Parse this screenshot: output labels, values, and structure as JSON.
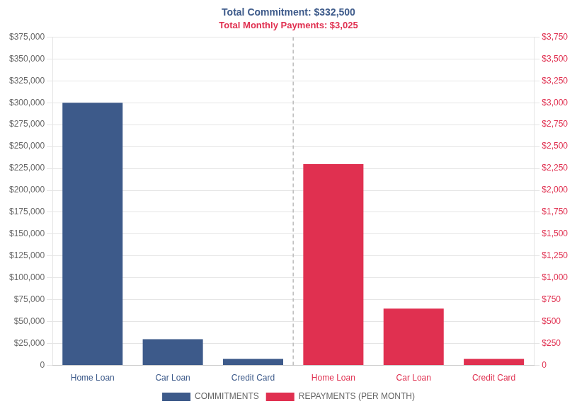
{
  "chart_data": {
    "type": "bar",
    "title": "Total Commitment: $332,500",
    "subtitle": "Total Monthly Payments: $3,025",
    "categories": [
      "Home Loan",
      "Car Loan",
      "Credit Card",
      "Home Loan",
      "Car Loan",
      "Credit Card"
    ],
    "series": [
      {
        "name": "COMMITMENTS",
        "color": "#3d5a8a",
        "values": [
          300000,
          30000,
          7500,
          null,
          null,
          null
        ]
      },
      {
        "name": "REPAYMENTS (PER MONTH)",
        "color": "#e03050",
        "axis": "y2",
        "values": [
          null,
          null,
          null,
          2300,
          650,
          75
        ]
      }
    ],
    "ylim": [
      0,
      375000
    ],
    "yticks": [
      0,
      {
        "value": 25000,
        "label": "$25,000"
      },
      {
        "value": 50000,
        "label": "$50,000"
      },
      {
        "value": 75000,
        "label": "$75,000"
      },
      {
        "value": 100000,
        "label": "$100,000"
      },
      {
        "value": 125000,
        "label": "$125,000"
      },
      {
        "value": 150000,
        "label": "$150,000"
      },
      {
        "value": 175000,
        "label": "$175,000"
      },
      {
        "value": 200000,
        "label": "$200,000"
      },
      {
        "value": 225000,
        "label": "$225,000"
      },
      {
        "value": 250000,
        "label": "$250,000"
      },
      {
        "value": 275000,
        "label": "$275,000"
      },
      {
        "value": 300000,
        "label": "$300,000"
      },
      {
        "value": 325000,
        "label": "$325,000"
      },
      {
        "value": 350000,
        "label": "$350,000"
      },
      {
        "value": 375000,
        "label": "$375,000"
      }
    ],
    "y2lim": [
      0,
      3750
    ],
    "y2ticks": [
      0,
      {
        "value": 250,
        "label": "$250"
      },
      {
        "value": 500,
        "label": "$500"
      },
      {
        "value": 750,
        "label": "$750"
      },
      {
        "value": 1000,
        "label": "$1,000"
      },
      {
        "value": 1250,
        "label": "$1,250"
      },
      {
        "value": 1500,
        "label": "$1,500"
      },
      {
        "value": 1750,
        "label": "$1,750"
      },
      {
        "value": 2000,
        "label": "$2,000"
      },
      {
        "value": 2250,
        "label": "$2,250"
      },
      {
        "value": 2500,
        "label": "$2,500"
      },
      {
        "value": 2750,
        "label": "$2,750"
      },
      {
        "value": 3000,
        "label": "$3,000"
      },
      {
        "value": 3250,
        "label": "$3,250"
      },
      {
        "value": 3500,
        "label": "$3,500"
      },
      {
        "value": 3750,
        "label": "$3,750"
      }
    ],
    "grid": true,
    "legend": "bottom"
  }
}
